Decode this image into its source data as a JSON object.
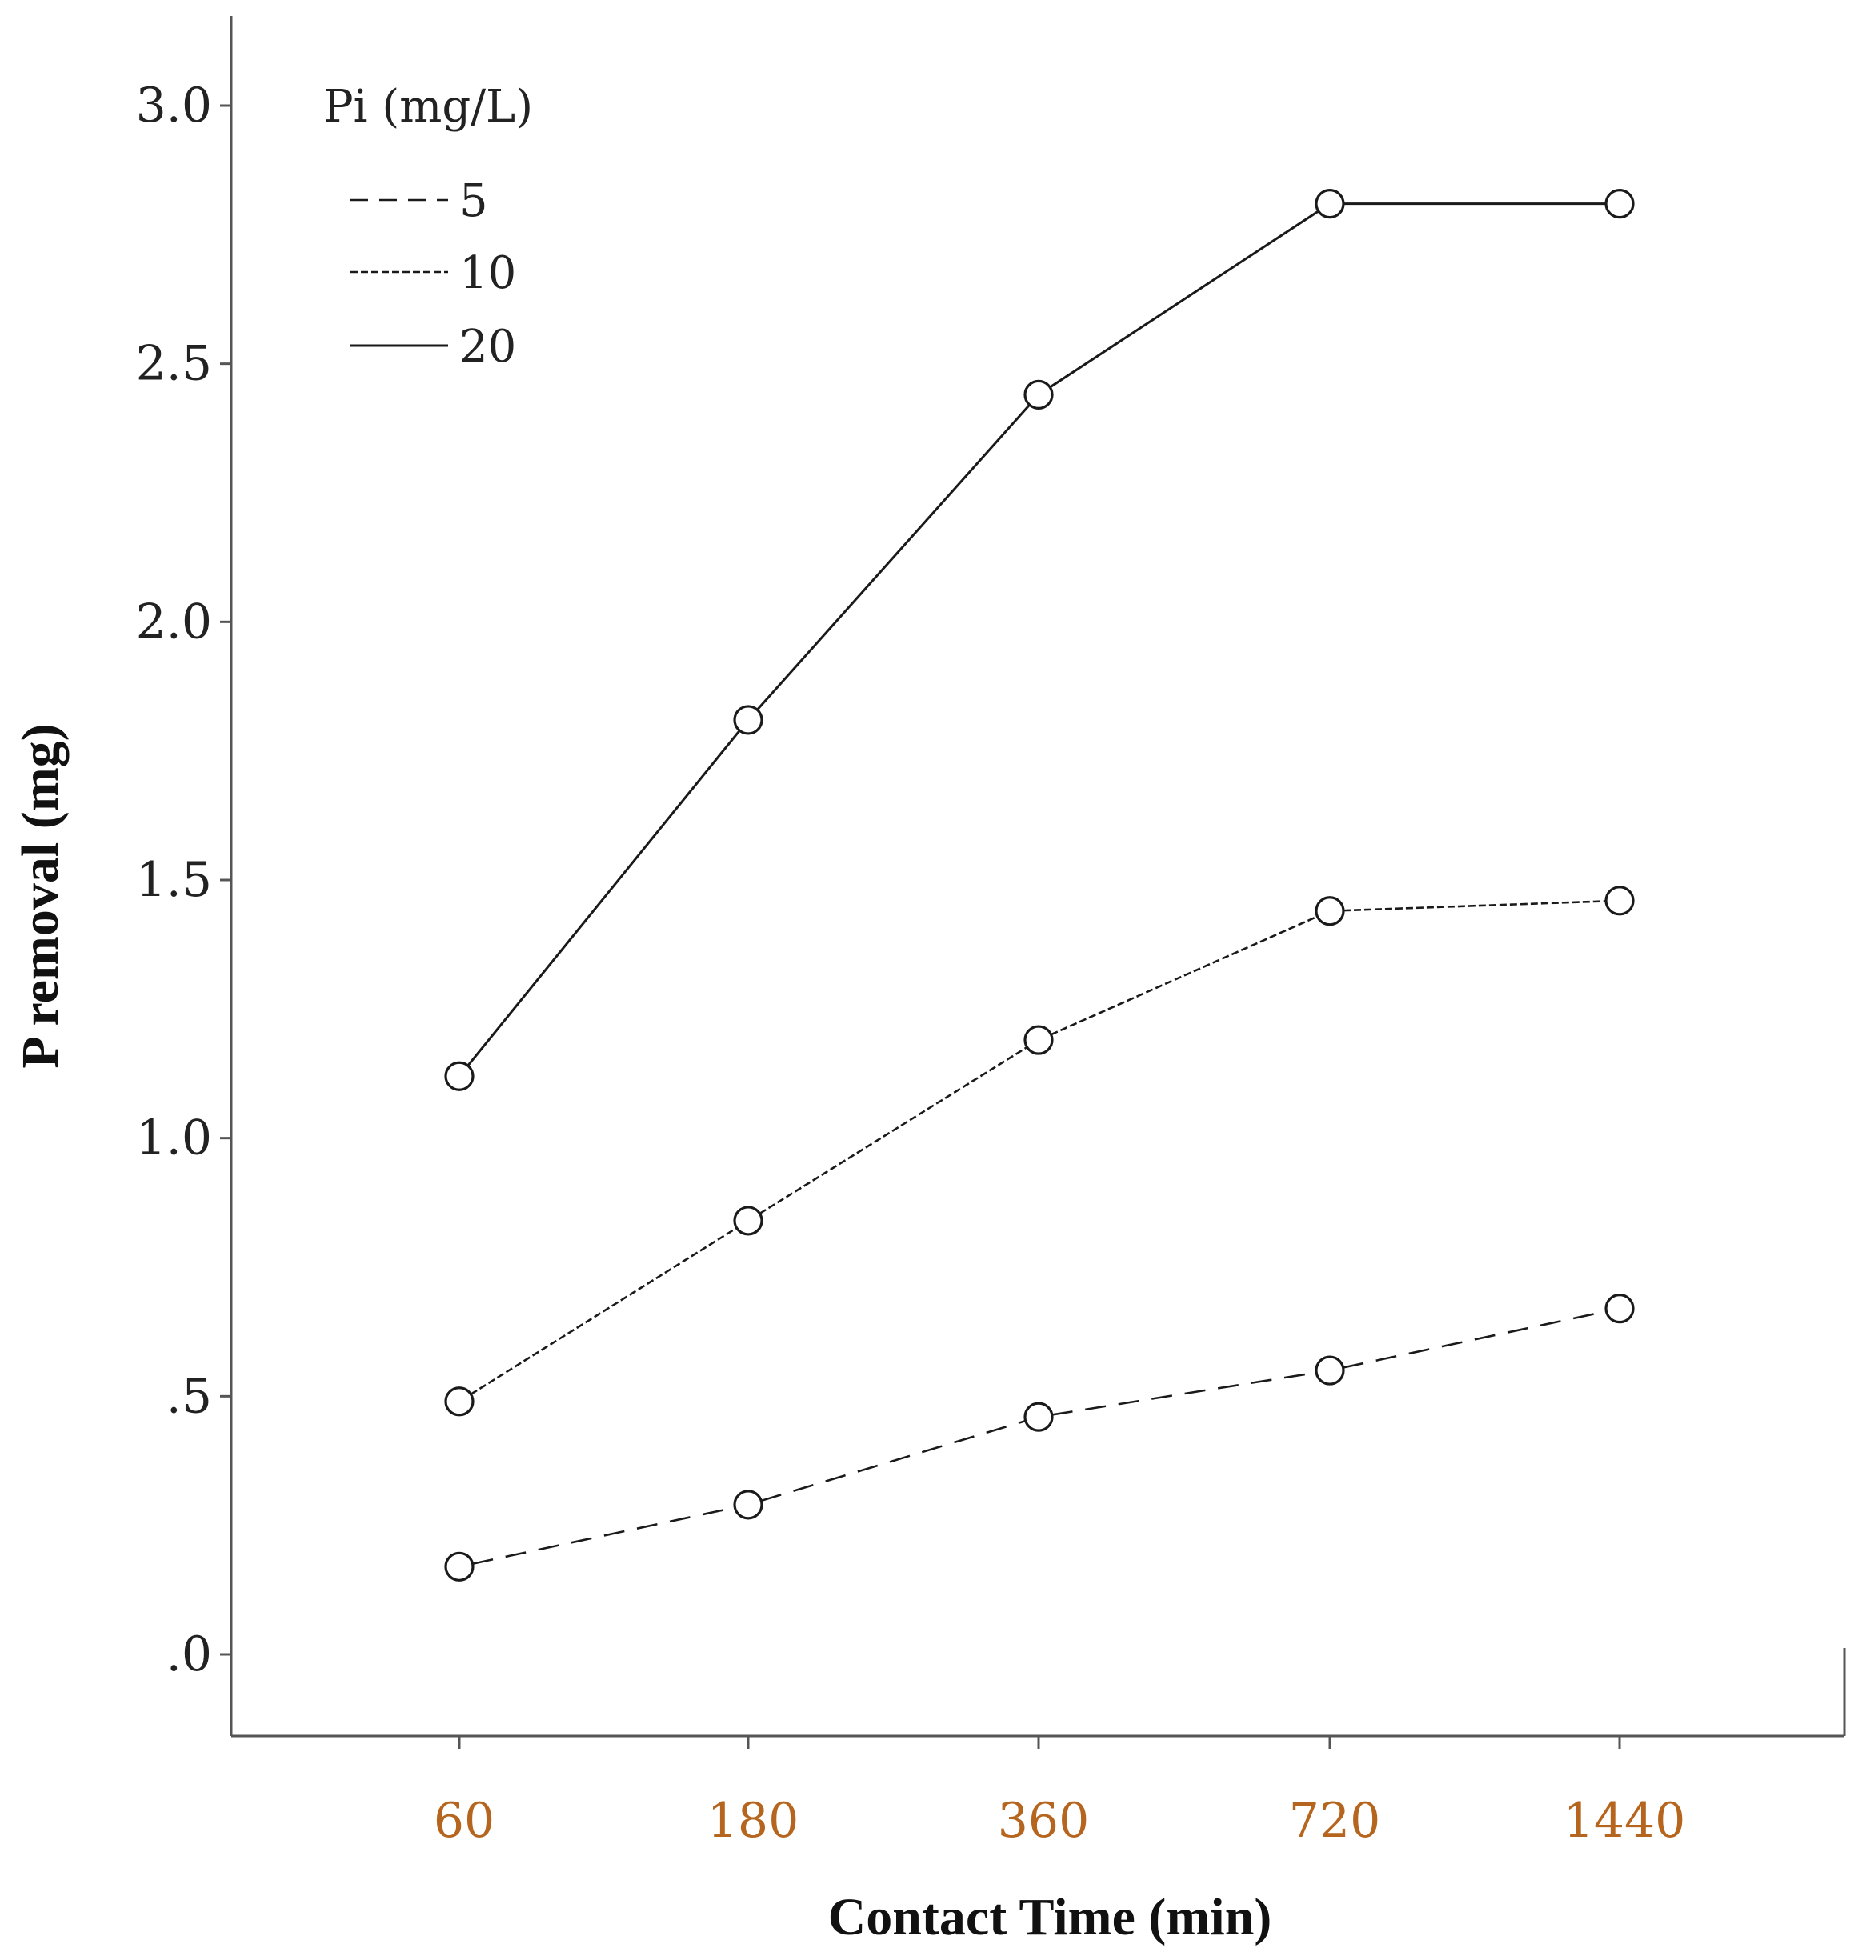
{
  "chart_data": {
    "type": "line",
    "title": "",
    "xlabel": "Contact Time (min)",
    "ylabel": "P removal (mg)",
    "categories": [
      "60",
      "180",
      "360",
      "720",
      "1440"
    ],
    "ylim": [
      -0.15,
      3.15
    ],
    "yticks": [
      {
        "value": 0.0,
        "label": ".0"
      },
      {
        "value": 0.5,
        "label": ".5"
      },
      {
        "value": 1.0,
        "label": "1.0"
      },
      {
        "value": 1.5,
        "label": "1.5"
      },
      {
        "value": 2.0,
        "label": "2.0"
      },
      {
        "value": 2.5,
        "label": "2.5"
      },
      {
        "value": 3.0,
        "label": "3.0"
      }
    ],
    "legend_title": "Pi (mg/L)",
    "legend_position": "top-left",
    "series": [
      {
        "name": "5",
        "style": "dashed",
        "values": [
          0.17,
          0.29,
          0.46,
          0.55,
          0.67
        ]
      },
      {
        "name": "10",
        "style": "dotted-dash",
        "values": [
          0.49,
          0.84,
          1.19,
          1.44,
          1.46
        ]
      },
      {
        "name": "20",
        "style": "solid",
        "values": [
          1.12,
          1.81,
          2.44,
          2.81,
          2.81
        ]
      }
    ],
    "colors": {
      "line": "#1a1a1a",
      "xtick": "#b5651d",
      "axis": "#555555"
    },
    "grid": false
  }
}
